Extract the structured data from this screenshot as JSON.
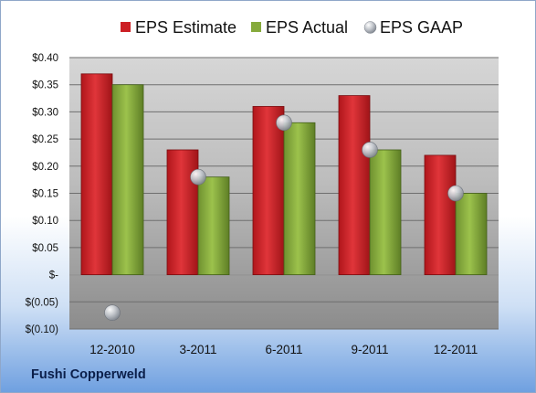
{
  "company": "Fushi Copperweld",
  "colors": {
    "estimate": "#cc1f24",
    "actual": "#86aa3c",
    "gaap": "#b9bec6"
  },
  "chart_data": {
    "type": "bar",
    "categories": [
      "12-2010",
      "3-2011",
      "6-2011",
      "9-2011",
      "12-2011"
    ],
    "series": [
      {
        "name": "EPS Estimate",
        "values": [
          0.37,
          0.23,
          0.31,
          0.33,
          0.22
        ]
      },
      {
        "name": "EPS Actual",
        "values": [
          0.35,
          0.18,
          0.28,
          0.23,
          0.15
        ]
      },
      {
        "name": "EPS GAAP",
        "type": "scatter",
        "values": [
          -0.07,
          0.18,
          0.28,
          0.23,
          0.15
        ]
      }
    ],
    "yticks": [
      0.4,
      0.35,
      0.3,
      0.25,
      0.2,
      0.15,
      0.1,
      0.05,
      0.0,
      -0.05,
      -0.1
    ],
    "ytick_labels": [
      "$0.40",
      "$0.35",
      "$0.30",
      "$0.25",
      "$0.20",
      "$0.15",
      "$0.10",
      "$0.05",
      "$-",
      "$(0.05)",
      "$(0.10)"
    ],
    "ylim": [
      -0.1,
      0.4
    ],
    "grid": true,
    "legend": "top"
  }
}
